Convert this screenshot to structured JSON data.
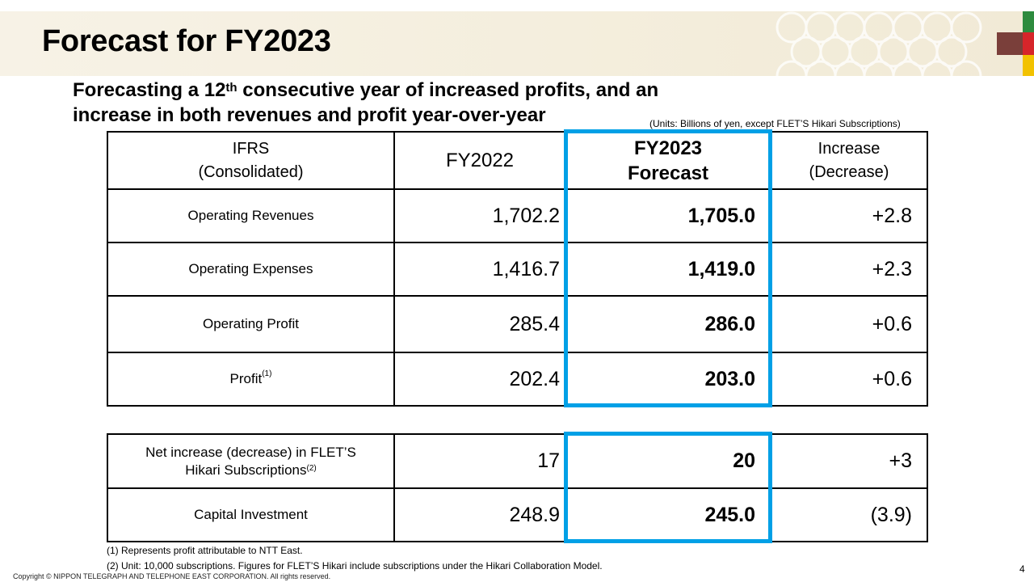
{
  "title": "Forecast for FY2023",
  "subtitle": {
    "line1_pre": "Forecasting a 12",
    "line1_sup": "th",
    "line1_post": " consecutive year of increased profits, and an",
    "line2": "increase in both revenues and profit year-over-year"
  },
  "units_note": "(Units: Billions of yen, except FLET’S Hikari Subscriptions)",
  "table": {
    "header": {
      "col1_line1": "IFRS",
      "col1_line2": "(Consolidated)",
      "col2": "FY2022",
      "col3_line1": "FY2023",
      "col3_line2": "Forecast",
      "col4_line1": "Increase",
      "col4_line2": "(Decrease)"
    },
    "rows": [
      {
        "label": "Operating Revenues",
        "fy2022": "1,702.2",
        "fy2023": "1,705.0",
        "change": "+2.8"
      },
      {
        "label": "Operating Expenses",
        "fy2022": "1,416.7",
        "fy2023": "1,419.0",
        "change": "+2.3"
      },
      {
        "label": "Operating Profit",
        "fy2022": "285.4",
        "fy2023": "286.0",
        "change": "+0.6"
      },
      {
        "label": "Profit",
        "label_sup": "(1)",
        "fy2022": "202.4",
        "fy2023": "203.0",
        "change": "+0.6"
      }
    ]
  },
  "table2": {
    "rows": [
      {
        "label_line1": "Net increase (decrease) in FLET’S",
        "label_line2": "Hikari Subscriptions",
        "label_sup": "(2)",
        "fy2022": "17",
        "fy2023": "20",
        "change": "+3"
      },
      {
        "label": "Capital Investment",
        "fy2022": "248.9",
        "fy2023": "245.0",
        "change": "(3.9)"
      }
    ]
  },
  "notes": [
    "(1) Represents profit attributable to NTT East.",
    "(2) Unit: 10,000 subscriptions. Figures for FLET’S Hikari include subscriptions under the Hikari Collaboration Model."
  ],
  "copyright": "Copyright © NIPPON TELEGRAPH AND TELEPHONE EAST CORPORATION. All rights reserved.",
  "page_number": "4",
  "colors": {
    "highlight": "#00a0e6",
    "header_band": "#f4eedd",
    "accent_brown": "#7a3f3a",
    "accent_green": "#2e8b3e",
    "accent_red": "#d6252a",
    "accent_yellow": "#f2c200"
  }
}
